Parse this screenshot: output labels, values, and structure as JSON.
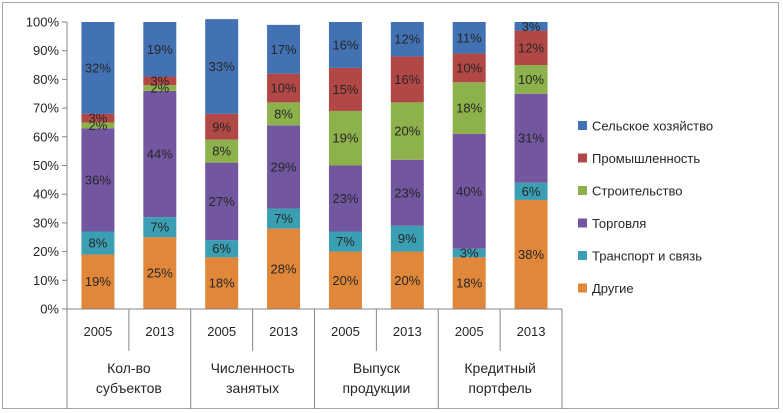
{
  "chart_data": {
    "type": "bar",
    "stacked": true,
    "percent": true,
    "title": "",
    "xlabel": "",
    "ylabel": "",
    "ylim": [
      0,
      100
    ],
    "yticks": [
      "0%",
      "10%",
      "20%",
      "30%",
      "40%",
      "50%",
      "60%",
      "70%",
      "80%",
      "90%",
      "100%"
    ],
    "grid": false,
    "legend_position": "right",
    "groups": [
      {
        "label_lines": [
          "Кол-во",
          "субъектов"
        ],
        "categories": [
          "2005",
          "2013"
        ]
      },
      {
        "label_lines": [
          "Численность",
          "занятых"
        ],
        "categories": [
          "2005",
          "2013"
        ]
      },
      {
        "label_lines": [
          "Выпуск",
          "продукции"
        ],
        "categories": [
          "2005",
          "2013"
        ]
      },
      {
        "label_lines": [
          "Кредитный",
          "портфель"
        ],
        "categories": [
          "2005",
          "2013"
        ]
      }
    ],
    "categories": [
      "2005",
      "2013",
      "2005",
      "2013",
      "2005",
      "2013",
      "2005",
      "2013"
    ],
    "series": [
      {
        "name": "Другие",
        "color": "#e0873a",
        "values": [
          19,
          25,
          18,
          28,
          20,
          20,
          18,
          38
        ],
        "labels": [
          "19%",
          "25%",
          "18%",
          "28%",
          "20%",
          "20%",
          "18%",
          "38%"
        ]
      },
      {
        "name": "Транспорт и связь",
        "color": "#3b9fb4",
        "values": [
          8,
          7,
          6,
          7,
          7,
          9,
          3,
          6
        ],
        "labels": [
          "8%",
          "7%",
          "6%",
          "7%",
          "7%",
          "9%",
          "3%",
          "6%"
        ]
      },
      {
        "name": "Торговля",
        "color": "#7356a0",
        "values": [
          36,
          44,
          27,
          29,
          23,
          23,
          40,
          31
        ],
        "labels": [
          "36%",
          "44%",
          "27%",
          "29%",
          "23%",
          "23%",
          "40%",
          "31%"
        ]
      },
      {
        "name": "Строительство",
        "color": "#8db14b",
        "values": [
          2,
          2,
          8,
          8,
          19,
          20,
          18,
          10
        ],
        "labels": [
          "2%",
          "2%",
          "8%",
          "8%",
          "19%",
          "20%",
          "18%",
          "10%"
        ]
      },
      {
        "name": "Промышленность",
        "color": "#b24846",
        "values": [
          3,
          3,
          9,
          10,
          15,
          16,
          10,
          12
        ],
        "labels": [
          "3%",
          "3%",
          "9%",
          "10%",
          "15%",
          "16%",
          "10%",
          "12%"
        ]
      },
      {
        "name": "Сельское хозяйство",
        "color": "#4272b4",
        "values": [
          32,
          19,
          33,
          17,
          16,
          12,
          11,
          3
        ],
        "labels": [
          "32%",
          "19%",
          "33%",
          "17%",
          "16%",
          "12%",
          "11%",
          "3%"
        ]
      }
    ],
    "legend_order": [
      "Сельское хозяйство",
      "Промышленность",
      "Строительство",
      "Торговля",
      "Транспорт и связь",
      "Другие"
    ]
  }
}
